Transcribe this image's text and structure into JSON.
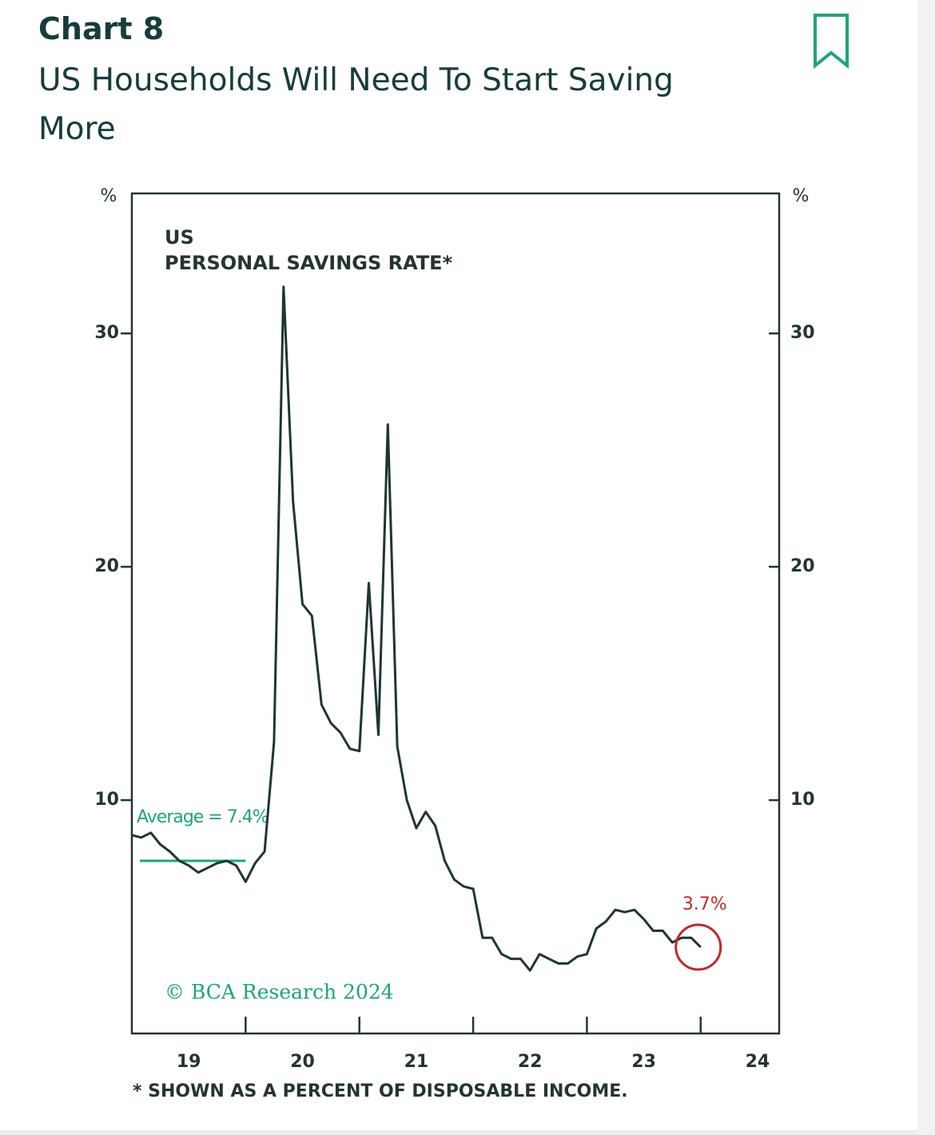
{
  "header": {
    "label": "Chart 8",
    "title": "US Households Will Need To Start Saving More"
  },
  "chart_data": {
    "type": "line",
    "panel_label": [
      "US",
      "PERSONAL SAVINGS RATE*"
    ],
    "y_unit": "%",
    "y2_unit": "%",
    "source": "© BCA Research 2024",
    "footnote": "* SHOWN AS A PERCENT OF DISPOSABLE INCOME.",
    "color": "#1e3535",
    "x": [
      2019,
      2019.083,
      2019.167,
      2019.25,
      2019.333,
      2019.417,
      2019.5,
      2019.583,
      2019.667,
      2019.75,
      2019.833,
      2019.917,
      2020,
      2020.083,
      2020.167,
      2020.25,
      2020.333,
      2020.417,
      2020.5,
      2020.583,
      2020.667,
      2020.75,
      2020.833,
      2020.917,
      2021,
      2021.083,
      2021.167,
      2021.25,
      2021.333,
      2021.417,
      2021.5,
      2021.583,
      2021.667,
      2021.75,
      2021.833,
      2021.917,
      2022,
      2022.083,
      2022.167,
      2022.25,
      2022.333,
      2022.417,
      2022.5,
      2022.583,
      2022.667,
      2022.75,
      2022.833,
      2022.917,
      2023,
      2023.083,
      2023.167,
      2023.25,
      2023.333,
      2023.417,
      2023.5,
      2023.583,
      2023.667,
      2023.75,
      2023.833,
      2023.917,
      2024
    ],
    "values": [
      8.5,
      8.4,
      8.6,
      8.1,
      7.8,
      7.4,
      7.2,
      6.9,
      7.1,
      7.3,
      7.4,
      7.2,
      6.5,
      7.3,
      7.8,
      12.5,
      32.0,
      22.8,
      18.4,
      17.9,
      14.1,
      13.3,
      12.9,
      12.2,
      12.1,
      19.3,
      12.8,
      26.1,
      12.3,
      10.0,
      8.8,
      9.5,
      8.9,
      7.4,
      6.6,
      6.3,
      6.2,
      4.1,
      4.1,
      3.4,
      3.2,
      3.2,
      2.7,
      3.4,
      3.2,
      3.0,
      3.0,
      3.3,
      3.4,
      4.5,
      4.8,
      5.3,
      5.2,
      5.3,
      4.9,
      4.4,
      4.4,
      3.9,
      4.1,
      4.1,
      3.7
    ],
    "average": {
      "value": 7.4,
      "label": "Average = 7.4%",
      "x": [
        2019.07,
        2020
      ]
    },
    "annotations": [
      {
        "text": "3.7%",
        "x": 2024,
        "y": 3.7
      }
    ],
    "xlim": [
      2019,
      2024.69
    ],
    "xticks": [
      2020,
      2021,
      2022,
      2023,
      2024
    ],
    "xtick_labels": [
      {
        "value": 2019.5,
        "label": "19"
      },
      {
        "value": 2020.5,
        "label": "20"
      },
      {
        "value": 2021.5,
        "label": "21"
      },
      {
        "value": 2022.5,
        "label": "22"
      },
      {
        "value": 2023.5,
        "label": "23"
      },
      {
        "value": 2024.5,
        "label": "24"
      }
    ],
    "ylim": [
      0,
      36
    ],
    "yticks": [
      10,
      20,
      30
    ],
    "y2lim": [
      0,
      36
    ],
    "y2ticks": [
      10,
      20,
      30
    ],
    "grid": false
  }
}
